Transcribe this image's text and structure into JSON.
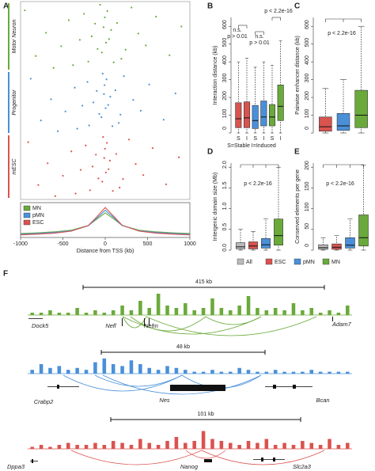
{
  "panel_labels": [
    "A",
    "B",
    "C",
    "D",
    "E",
    "F"
  ],
  "chart_data": [
    {
      "type": "scatter",
      "xlim": [
        -1000,
        1000
      ],
      "xticks": [
        -1000,
        -500,
        0,
        500,
        1000
      ],
      "xlabel": "Distance from TSS (kb)",
      "density_x": [
        -1000,
        -800,
        -600,
        -400,
        -200,
        -100,
        0,
        100,
        200,
        400,
        600,
        800,
        1000
      ],
      "ylim": [
        0,
        1
      ],
      "series": [
        {
          "name": "MN",
          "label": "Motor Neuron",
          "color": "#6aaa3a",
          "x": [
            -60,
            310,
            -950,
            25,
            -250,
            600,
            -5,
            -430,
            140,
            -120,
            900,
            -20,
            70,
            -700,
            390,
            -160,
            45,
            -300,
            10,
            480,
            -520,
            -90,
            240,
            -40,
            760,
            -820,
            190,
            -200,
            100,
            -380,
            -610
          ],
          "density": [
            0.12,
            0.14,
            0.17,
            0.22,
            0.36,
            0.55,
            0.74,
            0.56,
            0.36,
            0.22,
            0.17,
            0.14,
            0.12
          ]
        },
        {
          "name": "pMN",
          "label": "Progenitor",
          "color": "#4a90d9",
          "x": [
            -30,
            220,
            -880,
            15,
            -210,
            520,
            -8,
            -360,
            120,
            -100,
            830,
            -15,
            60,
            -640,
            330,
            -140,
            35,
            -270,
            5,
            420,
            -470,
            -70,
            180,
            -45,
            690,
            -760,
            160,
            -190,
            85,
            -330,
            -560
          ],
          "density": [
            0.1,
            0.12,
            0.15,
            0.2,
            0.35,
            0.58,
            0.82,
            0.6,
            0.36,
            0.2,
            0.15,
            0.12,
            0.1
          ]
        },
        {
          "name": "ESC",
          "label": "mESC",
          "color": "#d9534f",
          "x": [
            -25,
            280,
            -910,
            20,
            -230,
            560,
            -3,
            -400,
            130,
            -110,
            870,
            -12,
            55,
            -680,
            360,
            -150,
            40,
            -290,
            8,
            450,
            -500,
            -80,
            210,
            -35,
            720,
            -790,
            170,
            -180,
            90,
            -350,
            -590
          ],
          "density": [
            0.08,
            0.1,
            0.13,
            0.19,
            0.36,
            0.62,
            0.9,
            0.64,
            0.37,
            0.19,
            0.13,
            0.1,
            0.08
          ]
        }
      ]
    },
    {
      "type": "box",
      "ylabel": "Interaction distance (kb)",
      "ylim": [
        0,
        650
      ],
      "yticks": [
        0,
        100,
        200,
        300,
        400,
        500,
        600
      ],
      "categories": [
        "S",
        "I",
        "S",
        "I",
        "S",
        "I"
      ],
      "note": "S=Stable  I=Induced",
      "annotations": [
        "n.s.",
        "p > 0.01",
        "n.s.",
        "p > 0.01",
        "p < 2.2e-16"
      ],
      "boxes": [
        {
          "color": "#d9534f",
          "low": 0,
          "q1": 30,
          "median": 80,
          "q3": 170,
          "high": 400
        },
        {
          "color": "#d9534f",
          "low": 0,
          "q1": 30,
          "median": 85,
          "q3": 175,
          "high": 420
        },
        {
          "color": "#4a90d9",
          "low": 0,
          "q1": 25,
          "median": 70,
          "q3": 155,
          "high": 370
        },
        {
          "color": "#4a90d9",
          "low": 0,
          "q1": 40,
          "median": 90,
          "q3": 180,
          "high": 400
        },
        {
          "color": "#6aaa3a",
          "low": 0,
          "q1": 40,
          "median": 90,
          "q3": 160,
          "high": 380
        },
        {
          "color": "#6aaa3a",
          "low": 0,
          "q1": 70,
          "median": 150,
          "q3": 270,
          "high": 520
        }
      ]
    },
    {
      "type": "box",
      "ylabel": "Pairwise enhancer distance (kb)",
      "ylim": [
        0,
        650
      ],
      "yticks": [
        0,
        100,
        200,
        300,
        400,
        500,
        600
      ],
      "annotations": [
        "p < 2.2e-16"
      ],
      "boxes": [
        {
          "color": "#d9534f",
          "low": 0,
          "q1": 10,
          "median": 35,
          "q3": 90,
          "high": 250
        },
        {
          "color": "#4a90d9",
          "low": 0,
          "q1": 15,
          "median": 40,
          "q3": 110,
          "high": 300
        },
        {
          "color": "#6aaa3a",
          "low": 0,
          "q1": 30,
          "median": 100,
          "q3": 240,
          "high": 600
        }
      ]
    },
    {
      "type": "box",
      "ylabel": "Intergenic domain size (Mb)",
      "ylim": [
        0,
        2.1
      ],
      "yticks": [
        {
          "value": 0,
          "label": "0.0"
        },
        0.5,
        {
          "value": 1,
          "label": "1.0"
        },
        1.5,
        {
          "value": 2,
          "label": "2.0"
        }
      ],
      "annotations": [
        "p < 2.2e-16"
      ],
      "boxes": [
        {
          "color": "#bbbbbb",
          "low": 0,
          "q1": 0.03,
          "median": 0.08,
          "q3": 0.18,
          "high": 0.5
        },
        {
          "color": "#d9534f",
          "low": 0,
          "q1": 0.03,
          "median": 0.1,
          "q3": 0.2,
          "high": 0.45
        },
        {
          "color": "#4a90d9",
          "low": 0,
          "q1": 0.05,
          "median": 0.13,
          "q3": 0.28,
          "high": 0.75
        },
        {
          "color": "#6aaa3a",
          "low": 0,
          "q1": 0.12,
          "median": 0.35,
          "q3": 0.75,
          "high": 2
        }
      ]
    },
    {
      "type": "box",
      "ylabel": "Conserved elements per gene",
      "ylim": [
        0,
        210
      ],
      "yticks": [
        0,
        50,
        100,
        150,
        200
      ],
      "annotations": [
        "p < 2.2e-16"
      ],
      "boxes": [
        {
          "color": "#bbbbbb",
          "low": 0,
          "q1": 2,
          "median": 6,
          "q3": 13,
          "high": 30
        },
        {
          "color": "#d9534f",
          "low": 0,
          "q1": 2,
          "median": 7,
          "q3": 15,
          "high": 35
        },
        {
          "color": "#4a90d9",
          "low": 0,
          "q1": 5,
          "median": 12,
          "q3": 30,
          "high": 75
        },
        {
          "color": "#6aaa3a",
          "low": 0,
          "q1": 10,
          "median": 30,
          "q3": 85,
          "high": 205
        }
      ]
    }
  ],
  "legend": [
    {
      "name": "All",
      "color": "#bbbbbb"
    },
    {
      "name": "ESC",
      "color": "#d9534f"
    },
    {
      "name": "pMN",
      "color": "#4a90d9"
    },
    {
      "name": "MN",
      "color": "#6aaa3a"
    }
  ],
  "tracks": [
    {
      "scale_label": "415 kb",
      "color": "#6aaa3a",
      "ylim": [
        0,
        10
      ],
      "signal": [
        1,
        1,
        2,
        1,
        1,
        3,
        1,
        2,
        1,
        2,
        4,
        2,
        6,
        3,
        9,
        4,
        3,
        5,
        2,
        3,
        7,
        3,
        2,
        4,
        8,
        3,
        2,
        3,
        2,
        5,
        2,
        3,
        1,
        2,
        1,
        4
      ],
      "genes": [
        "Dock5",
        "Nefl",
        "Nefm",
        "Adam7"
      ]
    },
    {
      "scale_label": "48 kb",
      "color": "#4a90d9",
      "ylim": [
        0,
        10
      ],
      "signal": [
        2,
        5,
        3,
        4,
        2,
        3,
        2,
        6,
        8,
        5,
        4,
        7,
        5,
        3,
        2,
        4,
        3,
        2,
        1,
        1,
        2,
        1,
        1,
        3,
        2,
        1,
        1,
        2,
        1,
        1,
        1,
        2,
        1,
        1,
        1,
        1
      ],
      "genes": [
        "Crabp2",
        "Nes",
        "Bcan"
      ]
    },
    {
      "scale_label": "101 kb",
      "color": "#d9534f",
      "ylim": [
        0,
        10
      ],
      "signal": [
        1,
        2,
        1,
        2,
        3,
        2,
        2,
        3,
        2,
        4,
        3,
        2,
        5,
        3,
        2,
        4,
        6,
        3,
        4,
        9,
        5,
        4,
        3,
        2,
        4,
        3,
        5,
        2,
        3,
        2,
        4,
        3,
        2,
        5,
        2,
        3
      ],
      "genes": [
        "Dppa3",
        "Nanog",
        "Slc2a3"
      ]
    }
  ]
}
